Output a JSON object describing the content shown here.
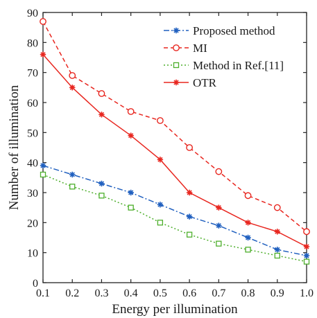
{
  "chart_data": {
    "type": "line",
    "title": "",
    "xlabel": "Energy per illumination",
    "ylabel": "Number of illumination",
    "xlim": [
      0.1,
      1.0
    ],
    "ylim": [
      0,
      90
    ],
    "x_ticks": [
      "0.1",
      "0.2",
      "0.3",
      "0.4",
      "0.5",
      "0.6",
      "0.7",
      "0.8",
      "0.9",
      "1.0"
    ],
    "y_ticks": [
      "0",
      "10",
      "20",
      "30",
      "40",
      "50",
      "60",
      "70",
      "80",
      "90"
    ],
    "x": [
      0.1,
      0.2,
      0.3,
      0.4,
      0.5,
      0.6,
      0.7,
      0.8,
      0.9,
      1.0
    ],
    "grid": false,
    "legend_position": "top-right",
    "series": [
      {
        "name": "Proposed method",
        "values": [
          39,
          36,
          33,
          30,
          26,
          22,
          19,
          15,
          11,
          9
        ],
        "color": "#1f5fbf",
        "line_style": "dashdot",
        "marker": "star"
      },
      {
        "name": "MI",
        "values": [
          87,
          69,
          63,
          57,
          54,
          45,
          37,
          29,
          25,
          17
        ],
        "color": "#e8261f",
        "line_style": "dashed",
        "marker": "circle"
      },
      {
        "name": "Method in Ref.[11]",
        "values": [
          36,
          32,
          29,
          25,
          20,
          16,
          13,
          11,
          9,
          7
        ],
        "color": "#4cae2a",
        "line_style": "dotted",
        "marker": "square"
      },
      {
        "name": "OTR",
        "values": [
          76,
          65,
          56,
          49,
          41,
          30,
          25,
          20,
          17,
          12
        ],
        "color": "#e8261f",
        "line_style": "solid",
        "marker": "star"
      }
    ]
  }
}
